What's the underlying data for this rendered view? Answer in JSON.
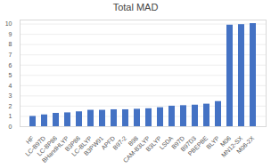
{
  "chart_data": {
    "type": "bar",
    "title": "Total MAD",
    "categories": [
      "HF",
      "LC-B97D",
      "LC-BP86",
      "BHandHLYP",
      "B3P86",
      "LC-BLYP",
      "B3PW91",
      "APFD",
      "B97-2",
      "B98",
      "CAM-B3LYP",
      "B3LYP",
      "LSDA",
      "B97D",
      "B97D3",
      "PBEPBE",
      "BLYP",
      "M06",
      "MN12-SX",
      "M06-2X"
    ],
    "values": [
      1.0,
      1.15,
      1.3,
      1.35,
      1.45,
      1.6,
      1.6,
      1.65,
      1.65,
      1.7,
      1.75,
      1.85,
      2.0,
      2.05,
      2.1,
      2.2,
      2.45,
      9.9,
      9.95,
      10.05
    ],
    "color": "#4472c4",
    "ylim": [
      0,
      10.4
    ],
    "yticks": [
      0,
      1,
      2,
      3,
      4,
      5,
      6,
      7,
      8,
      9,
      10
    ],
    "grid": true
  }
}
